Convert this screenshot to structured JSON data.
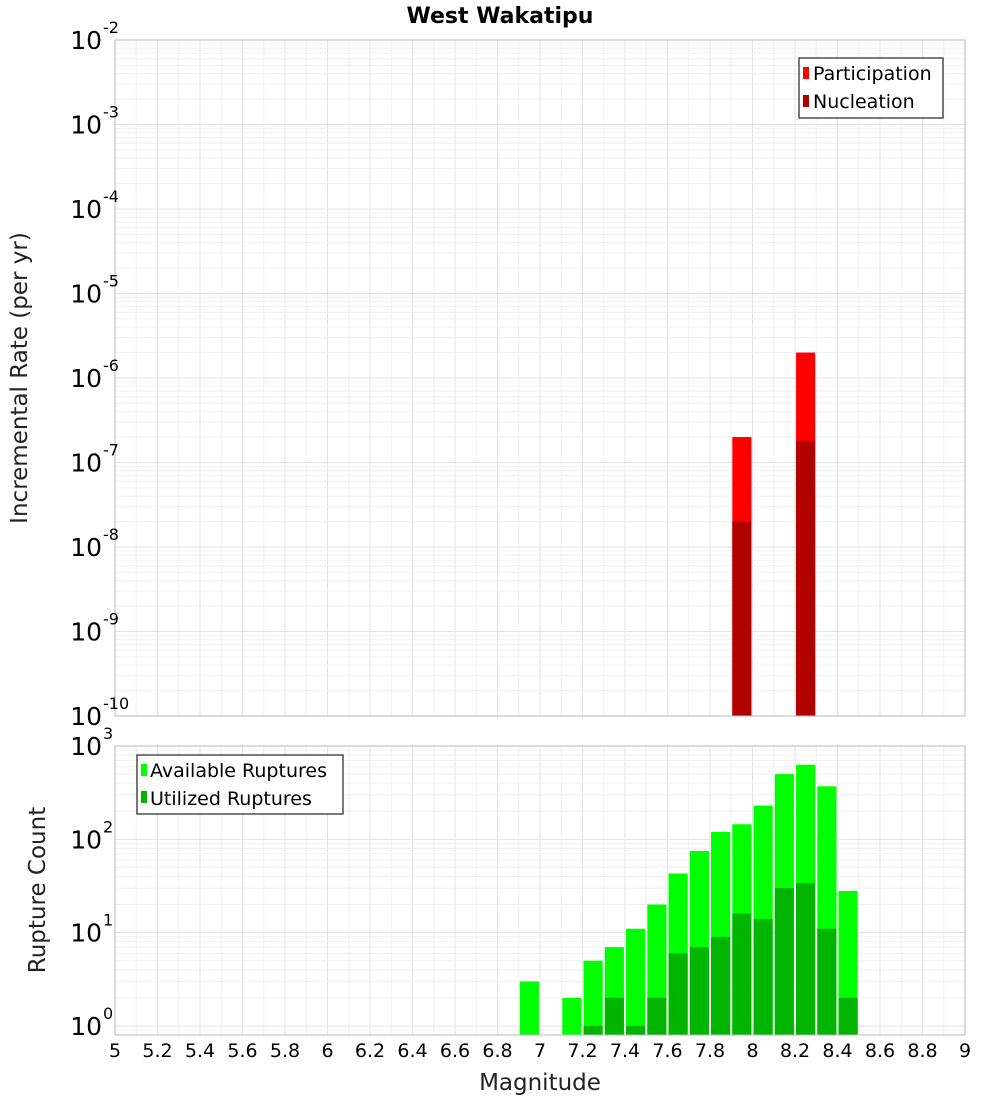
{
  "chart_data": [
    {
      "id": "rate",
      "type": "bar",
      "title": "West Wakatipu",
      "xlabel": "",
      "ylabel": "Incremental Rate (per yr)",
      "yscale": "log",
      "xlim": [
        5,
        9
      ],
      "ylim": [
        1e-10,
        0.01
      ],
      "y_ticks": [
        {
          "base": "10",
          "exp": "-2",
          "value": 0.01
        },
        {
          "base": "10",
          "exp": "-3",
          "value": 0.001
        },
        {
          "base": "10",
          "exp": "-4",
          "value": 0.0001
        },
        {
          "base": "10",
          "exp": "-5",
          "value": 1e-05
        },
        {
          "base": "10",
          "exp": "-6",
          "value": 1e-06
        },
        {
          "base": "10",
          "exp": "-7",
          "value": 1e-07
        },
        {
          "base": "10",
          "exp": "-8",
          "value": 1e-08
        },
        {
          "base": "10",
          "exp": "-9",
          "value": 1e-09
        },
        {
          "base": "10",
          "exp": "-10",
          "value": 1e-10
        }
      ],
      "grid": true,
      "legend_position": "top-right",
      "bar_width": 0.09,
      "series": [
        {
          "name": "Participation",
          "color": "#ff0000",
          "x": [
            7.95,
            8.25
          ],
          "values": [
            2e-07,
            2e-06
          ]
        },
        {
          "name": "Nucleation",
          "color": "#b00000",
          "x": [
            7.95,
            8.25
          ],
          "values": [
            2e-08,
            1.8e-07
          ]
        }
      ]
    },
    {
      "id": "count",
      "type": "bar",
      "title": "",
      "xlabel": "Magnitude",
      "ylabel": "Rupture Count",
      "yscale": "log",
      "xlim": [
        5,
        9
      ],
      "ylim": [
        0.8,
        1000
      ],
      "x_ticks": [
        "5",
        "5.2",
        "5.4",
        "5.6",
        "5.8",
        "6",
        "6.2",
        "6.4",
        "6.6",
        "6.8",
        "7",
        "7.2",
        "7.4",
        "7.6",
        "7.8",
        "8",
        "8.2",
        "8.4",
        "8.6",
        "8.8",
        "9"
      ],
      "y_ticks": [
        {
          "base": "10",
          "exp": "3",
          "value": 1000
        },
        {
          "base": "10",
          "exp": "2",
          "value": 100
        },
        {
          "base": "10",
          "exp": "1",
          "value": 10
        },
        {
          "base": "10",
          "exp": "0",
          "value": 1
        }
      ],
      "grid": true,
      "legend_position": "top-left",
      "bar_width": 0.09,
      "series": [
        {
          "name": "Available Ruptures",
          "color": "#00ff00",
          "x": [
            6.95,
            7.15,
            7.25,
            7.35,
            7.45,
            7.55,
            7.65,
            7.75,
            7.85,
            7.95,
            8.05,
            8.15,
            8.25,
            8.35,
            8.45
          ],
          "values": [
            3,
            2,
            5,
            7,
            11,
            20,
            43,
            75,
            120,
            145,
            230,
            500,
            630,
            370,
            28
          ]
        },
        {
          "name": "Utilized Ruptures",
          "color": "#00b400",
          "x": [
            7.25,
            7.35,
            7.45,
            7.55,
            7.65,
            7.75,
            7.85,
            7.95,
            8.05,
            8.15,
            8.25,
            8.35,
            8.45
          ],
          "values": [
            1,
            2,
            1,
            2,
            6,
            7,
            9,
            16,
            14,
            30,
            34,
            11,
            2
          ]
        }
      ]
    }
  ]
}
